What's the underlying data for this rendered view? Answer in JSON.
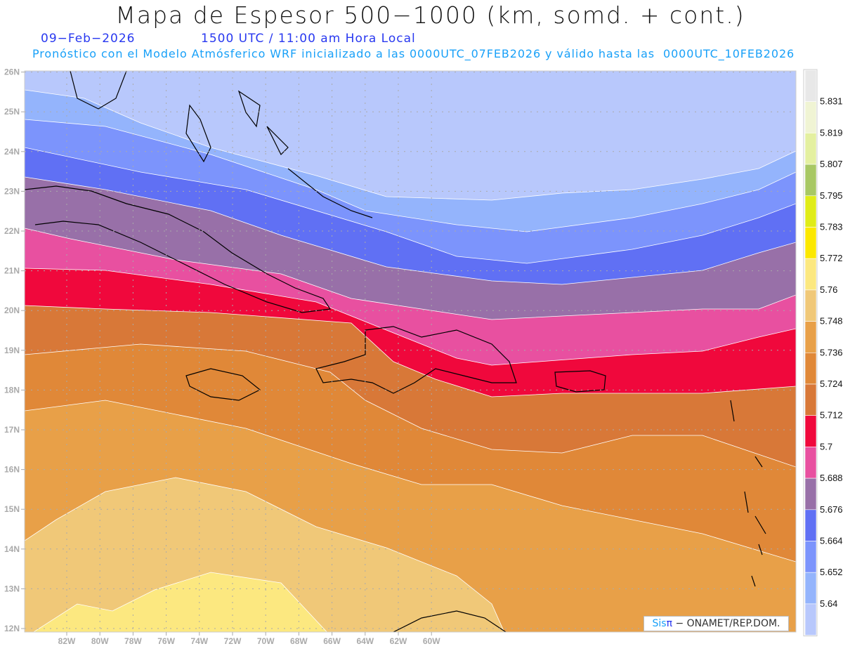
{
  "header": {
    "title": "Mapa de Espesor 500−1000 (km, somd. + cont.)",
    "date": "09−Feb−2026",
    "time": "1500 UTC / 11:00 am Hora Local",
    "description": "Pronóstico con el Modelo Atmósferico WRF inicializado a las 0000UTC_07FEB2026 y válido hasta las  0000UTC_10FEB2026"
  },
  "axes": {
    "lat_labels": [
      "12N",
      "13N",
      "14N",
      "15N",
      "16N",
      "17N",
      "18N",
      "19N",
      "20N",
      "21N",
      "22N",
      "23N",
      "24N",
      "25N",
      "26N"
    ],
    "lon_labels": [
      "82W",
      "80W",
      "78W",
      "76W",
      "74W",
      "72W",
      "70W",
      "68W",
      "66W",
      "64W",
      "62W",
      "60W"
    ]
  },
  "legend": {
    "labels": [
      "5.831",
      "5.819",
      "5.807",
      "5.795",
      "5.783",
      "5.772",
      "5.76",
      "5.748",
      "5.736",
      "5.724",
      "5.712",
      "5.7",
      "5.688",
      "5.676",
      "5.664",
      "5.652",
      "5.64"
    ],
    "colors": [
      "#e8e8e8",
      "#f0f4d4",
      "#e4f0a0",
      "#a8c864",
      "#e0ec18",
      "#fce800",
      "#fce880",
      "#f0c878",
      "#e8a048",
      "#e08838",
      "#d87838",
      "#f0083c",
      "#e850a0",
      "#9870a8",
      "#6070f4",
      "#7c94fc",
      "#94b4fc",
      "#b8c8fc"
    ]
  },
  "footer": {
    "brand_sis": "Sis",
    "brand_pi": "π",
    "credit": " − ONAMET/REP.DOM."
  }
}
